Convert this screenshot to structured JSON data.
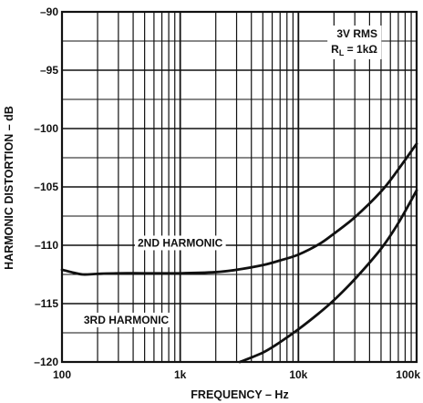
{
  "chart_data": {
    "type": "line",
    "title": "",
    "xlabel": "FREQUENCY – Hz",
    "ylabel": "HARMONIC DISTORTION – dB",
    "x_scale": "log",
    "xlim": [
      100,
      100000
    ],
    "ylim": [
      -120,
      -90
    ],
    "x_ticks": [
      {
        "value": 100,
        "label": "100"
      },
      {
        "value": 1000,
        "label": "1k"
      },
      {
        "value": 10000,
        "label": "10k"
      },
      {
        "value": 100000,
        "label": "100k"
      }
    ],
    "y_ticks": [
      {
        "value": -90,
        "label": "–90"
      },
      {
        "value": -95,
        "label": "–95"
      },
      {
        "value": -100,
        "label": "–100"
      },
      {
        "value": -105,
        "label": "–105"
      },
      {
        "value": -110,
        "label": "–110"
      },
      {
        "value": -115,
        "label": "–115"
      },
      {
        "value": -120,
        "label": "–120"
      }
    ],
    "y_minor_step": 2.5,
    "grid": true,
    "annotation": {
      "line1": "3V RMS",
      "line2_prefix": "R",
      "line2_sub": "L",
      "line2_suffix": " = 1kΩ"
    },
    "series": [
      {
        "name": "2ND HARMONIC",
        "x": [
          100,
          120,
          150,
          200,
          300,
          500,
          1000,
          2000,
          3000,
          5000,
          7000,
          10000,
          15000,
          20000,
          30000,
          50000,
          70000,
          100000
        ],
        "y": [
          -112.1,
          -112.3,
          -112.5,
          -112.45,
          -112.4,
          -112.4,
          -112.4,
          -112.3,
          -112.1,
          -111.7,
          -111.3,
          -110.8,
          -109.9,
          -109.0,
          -107.6,
          -105.4,
          -103.5,
          -101.3
        ]
      },
      {
        "name": "3RD HARMONIC",
        "x": [
          3200,
          5000,
          7000,
          10000,
          15000,
          20000,
          30000,
          50000,
          70000,
          100000
        ],
        "y": [
          -120.0,
          -119.2,
          -118.3,
          -117.2,
          -115.8,
          -114.7,
          -112.9,
          -110.3,
          -108.1,
          -105.3
        ]
      }
    ],
    "series_label_positions": [
      {
        "x": 1000,
        "y": -109.8
      },
      {
        "x": 350,
        "y": -116.4
      }
    ]
  }
}
